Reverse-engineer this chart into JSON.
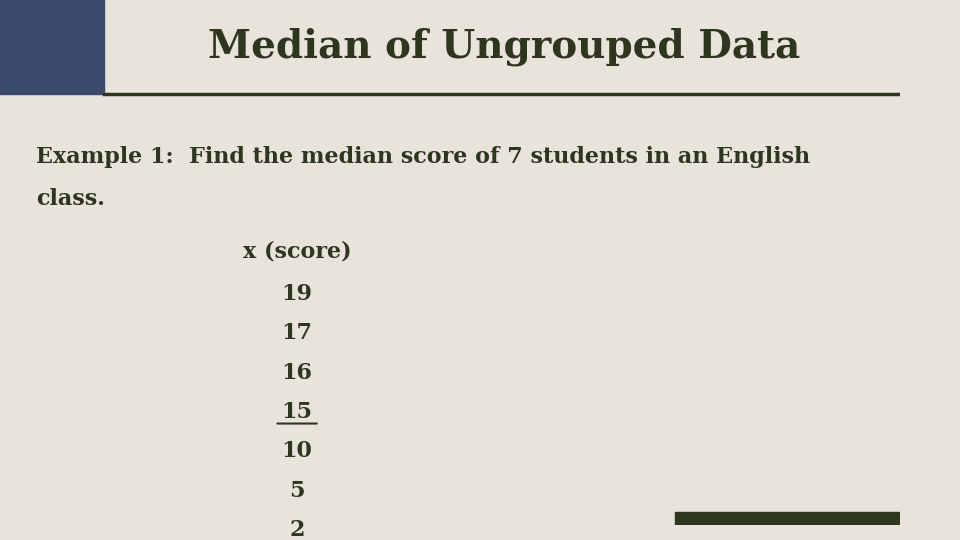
{
  "title": "Median of Ungrouped Data",
  "title_fontsize": 28,
  "title_color": "#2F3620",
  "background_color": "#E8E4DC",
  "left_panel_color": "#3B4A6B",
  "header_line_color": "#2F3620",
  "example_text_line1": "Example 1:  Find the median score of 7 students in an English",
  "example_text_line2": "class.",
  "example_fontsize": 16,
  "column_header": "x (score)",
  "scores": [
    "19",
    "17",
    "16",
    "15",
    "10",
    "5",
    "2"
  ],
  "median_index": 3,
  "score_fontsize": 16,
  "header_fontsize": 16,
  "bottom_bar_color": "#2F3620",
  "text_color": "#2F3620"
}
